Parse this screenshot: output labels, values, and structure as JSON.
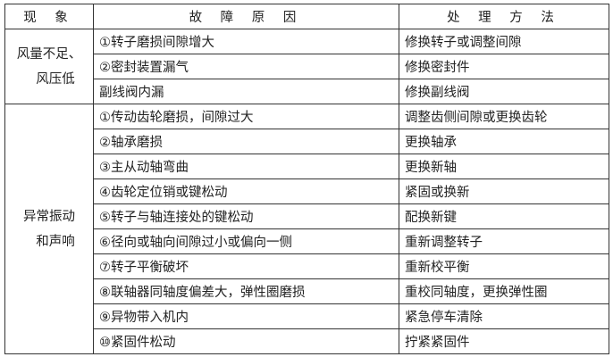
{
  "table": {
    "headers": [
      "现 象",
      "故 障 原 因",
      "处 理 方 法"
    ],
    "groups": [
      {
        "phenomenon": [
          "风量不足、",
          "风压低"
        ],
        "rows": [
          {
            "cause": "①转子磨损间隙增大",
            "solution": "修换转子或调整间隙"
          },
          {
            "cause": "②密封装置漏气",
            "solution": "修换密封件"
          },
          {
            "cause": "副线阀内漏",
            "solution": "修换副线阀"
          }
        ]
      },
      {
        "phenomenon": [
          "异常振动",
          "和声响"
        ],
        "rows": [
          {
            "cause": "①传动齿轮磨损，间隙过大",
            "solution": "调整齿侧间隙或更换齿轮"
          },
          {
            "cause": "②轴承磨损",
            "solution": "更换轴承"
          },
          {
            "cause": "③主从动轴弯曲",
            "solution": "更换新轴"
          },
          {
            "cause": "④齿轮定位销或键松动",
            "solution": "紧固或换新"
          },
          {
            "cause": "⑤转子与轴连接处的键松动",
            "solution": "配换新键"
          },
          {
            "cause": "⑥径向或轴向间隙过小或偏向一侧",
            "solution": "重新调整转子"
          },
          {
            "cause": "⑦转子平衡破坏",
            "solution": "重新校平衡"
          },
          {
            "cause": "⑧联轴器同轴度偏差大，弹性圈磨损",
            "solution": "重校同轴度，更换弹性圈"
          },
          {
            "cause": "⑨异物带入机内",
            "solution": "紧急停车清除"
          },
          {
            "cause": "⑩紧固件松动",
            "solution": "拧紧紧固件"
          }
        ]
      }
    ]
  }
}
